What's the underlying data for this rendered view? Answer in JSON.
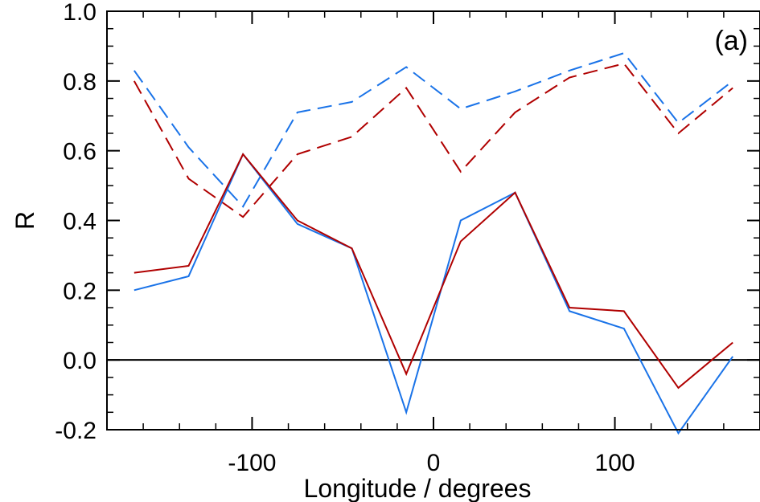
{
  "chart_data": {
    "type": "line",
    "panel_label": "(a)",
    "xlabel": "Longitude / degrees",
    "ylabel": "R",
    "xlim": [
      -180,
      180
    ],
    "ylim": [
      -0.2,
      1.0
    ],
    "x_ticks": [
      -100,
      0,
      100
    ],
    "x_tick_labels": [
      "-100",
      "0",
      "100"
    ],
    "y_ticks": [
      -0.2,
      0.0,
      0.2,
      0.4,
      0.6,
      0.8,
      1.0
    ],
    "y_tick_labels": [
      "-0.2",
      "0.0",
      "0.2",
      "0.4",
      "0.6",
      "0.8",
      "1.0"
    ],
    "reference_line_y": 0.0,
    "x": [
      -165,
      -135,
      -105,
      -75,
      -45,
      -15,
      15,
      45,
      75,
      105,
      135,
      165
    ],
    "series": [
      {
        "color": "#1a73e8",
        "dash": "dashed",
        "values": [
          0.83,
          0.61,
          0.44,
          0.71,
          0.74,
          0.84,
          0.72,
          0.77,
          0.83,
          0.88,
          0.68,
          0.8
        ]
      },
      {
        "color": "#b00000",
        "dash": "dashed",
        "values": [
          0.8,
          0.52,
          0.41,
          0.59,
          0.64,
          0.78,
          0.54,
          0.71,
          0.81,
          0.85,
          0.65,
          0.78
        ]
      },
      {
        "color": "#1a73e8",
        "dash": "solid",
        "values": [
          0.2,
          0.24,
          0.59,
          0.39,
          0.32,
          -0.15,
          0.4,
          0.48,
          0.14,
          0.09,
          -0.21,
          0.01
        ]
      },
      {
        "color": "#b00000",
        "dash": "solid",
        "values": [
          0.25,
          0.27,
          0.59,
          0.4,
          0.32,
          -0.04,
          0.34,
          0.48,
          0.15,
          0.14,
          -0.08,
          0.05
        ]
      }
    ]
  }
}
